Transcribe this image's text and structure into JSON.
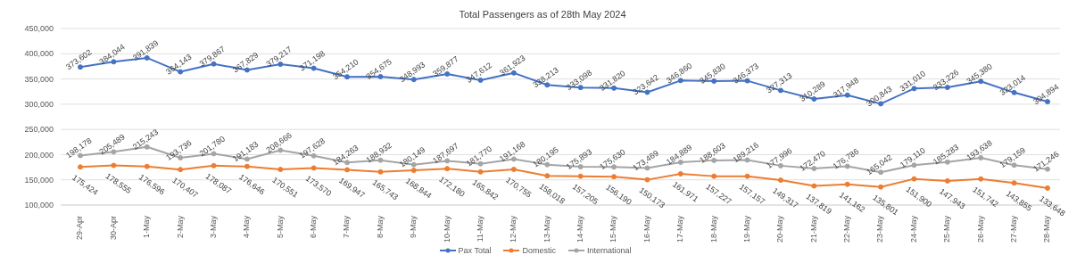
{
  "chart_data": {
    "type": "line",
    "title": "Total Passengers as of 28th May 2024",
    "categories": [
      "29-Apr",
      "30-Apr",
      "1-May",
      "2-May",
      "3-May",
      "4-May",
      "5-May",
      "6-May",
      "7-May",
      "8-May",
      "9-May",
      "10-May",
      "11-May",
      "12-May",
      "13-May",
      "14-May",
      "15-May",
      "16-May",
      "17-May",
      "18-May",
      "19-May",
      "20-May",
      "21-May",
      "22-May",
      "23-May",
      "24-May",
      "25-May",
      "26-May",
      "27-May",
      "28-May"
    ],
    "series": [
      {
        "name": "Pax Total",
        "color": "#4472c4",
        "values": [
          373602,
          384044,
          391839,
          364143,
          379867,
          367829,
          379217,
          371198,
          354210,
          354675,
          348993,
          359877,
          347612,
          361923,
          338213,
          333098,
          331820,
          323642,
          346860,
          345830,
          346373,
          327313,
          310289,
          317948,
          300843,
          331010,
          333226,
          345380,
          323014,
          304894
        ],
        "value_labels": [
          "373,602",
          "384,044",
          "391,839",
          "364,143",
          "379,867",
          "367,829",
          "379,217",
          "371,198",
          "354,210",
          "354,675",
          "348,993",
          "359,877",
          "347,612",
          "361,923",
          "338,213",
          "333,098",
          "331,820",
          "323,642",
          "346,860",
          "345,830",
          "346,373",
          "327,313",
          "310,289",
          "317,948",
          "300,843",
          "331,010",
          "333,226",
          "345,380",
          "323,014",
          "304,894"
        ]
      },
      {
        "name": "Domestic",
        "color": "#ed7d31",
        "values": [
          175424,
          178555,
          176596,
          170407,
          178087,
          176646,
          170551,
          173570,
          169947,
          165743,
          168844,
          172180,
          165842,
          170755,
          158018,
          157205,
          156190,
          150173,
          161971,
          157227,
          157157,
          149317,
          137819,
          141162,
          135801,
          151900,
          147943,
          151742,
          143855,
          133648
        ],
        "value_labels": [
          "175,424",
          "178,555",
          "176,596",
          "170,407",
          "178,087",
          "176,646",
          "170,551",
          "173,570",
          "169,947",
          "165,743",
          "168,844",
          "172,180",
          "165,842",
          "170,755",
          "158,018",
          "157,205",
          "156,190",
          "150,173",
          "161,971",
          "157,227",
          "157,157",
          "149,317",
          "137,819",
          "141,162",
          "135,801",
          "151,900",
          "147,943",
          "151,742",
          "143,855",
          "133,648"
        ]
      },
      {
        "name": "International",
        "color": "#a5a5a5",
        "values": [
          198178,
          205489,
          215243,
          193736,
          201780,
          191183,
          208666,
          197628,
          184263,
          188932,
          180149,
          187697,
          181770,
          191168,
          180195,
          175893,
          175630,
          173469,
          184889,
          188603,
          189216,
          177996,
          172470,
          176786,
          165042,
          179110,
          185283,
          193638,
          179159,
          171246
        ],
        "value_labels": [
          "198,178",
          "205,489",
          "215,243",
          "193,736",
          "201,780",
          "191,183",
          "208,666",
          "197,628",
          "184,263",
          "188,932",
          "180,149",
          "187,697",
          "181,770",
          "191,168",
          "180,195",
          "175,893",
          "175,630",
          "173,469",
          "184,889",
          "188,603",
          "189,216",
          "177,996",
          "172,470",
          "176,786",
          "165,042",
          "179,110",
          "185,283",
          "193,638",
          "179,159",
          "171,246"
        ]
      }
    ],
    "ylim": [
      100000,
      450000
    ],
    "yticks": [
      {
        "value": 100000,
        "label": "100,000"
      },
      {
        "value": 150000,
        "label": "150,000"
      },
      {
        "value": 200000,
        "label": "200,000"
      },
      {
        "value": 250000,
        "label": "250,000"
      },
      {
        "value": 300000,
        "label": "300,000"
      },
      {
        "value": 350000,
        "label": "350,000"
      },
      {
        "value": 400000,
        "label": "400,000"
      },
      {
        "value": 450000,
        "label": "450,000"
      }
    ],
    "grid": "y",
    "legend": "bottom",
    "marker": "circle",
    "line_style": "solid"
  }
}
